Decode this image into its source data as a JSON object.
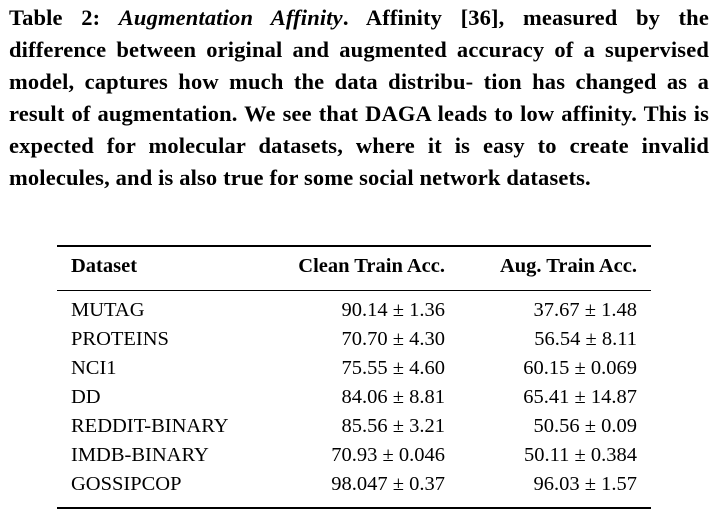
{
  "caption": {
    "label": "Table 2:",
    "title": "Augmentation Affinity",
    "body": "Affinity [36], measured by the difference between original and augmented accuracy of a supervised model, captures how much the data distribu- tion has changed as a result of augmentation. We see that DAGA leads to low affinity. This is expected for molecular datasets, where it is easy to create invalid molecules, and is also true for some social network datasets."
  },
  "table": {
    "headers": [
      "Dataset",
      "Clean Train Acc.",
      "Aug. Train Acc."
    ],
    "rows": [
      {
        "dataset": "MUTAG",
        "clean": "90.14 ± 1.36",
        "aug": "37.67 ± 1.48"
      },
      {
        "dataset": "PROTEINS",
        "clean": "70.70 ± 4.30",
        "aug": "56.54 ± 8.11"
      },
      {
        "dataset": "NCI1",
        "clean": "75.55 ± 4.60",
        "aug": "60.15 ± 0.069"
      },
      {
        "dataset": "DD",
        "clean": "84.06 ± 8.81",
        "aug": "65.41 ± 14.87"
      },
      {
        "dataset": "REDDIT-BINARY",
        "clean": "85.56 ± 3.21",
        "aug": "50.56 ± 0.09"
      },
      {
        "dataset": "IMDB-BINARY",
        "clean": "70.93 ± 0.046",
        "aug": "50.11 ± 0.384"
      },
      {
        "dataset": "GOSSIPCOP",
        "clean": "98.047 ± 0.37",
        "aug": "96.03 ± 1.57"
      }
    ]
  }
}
